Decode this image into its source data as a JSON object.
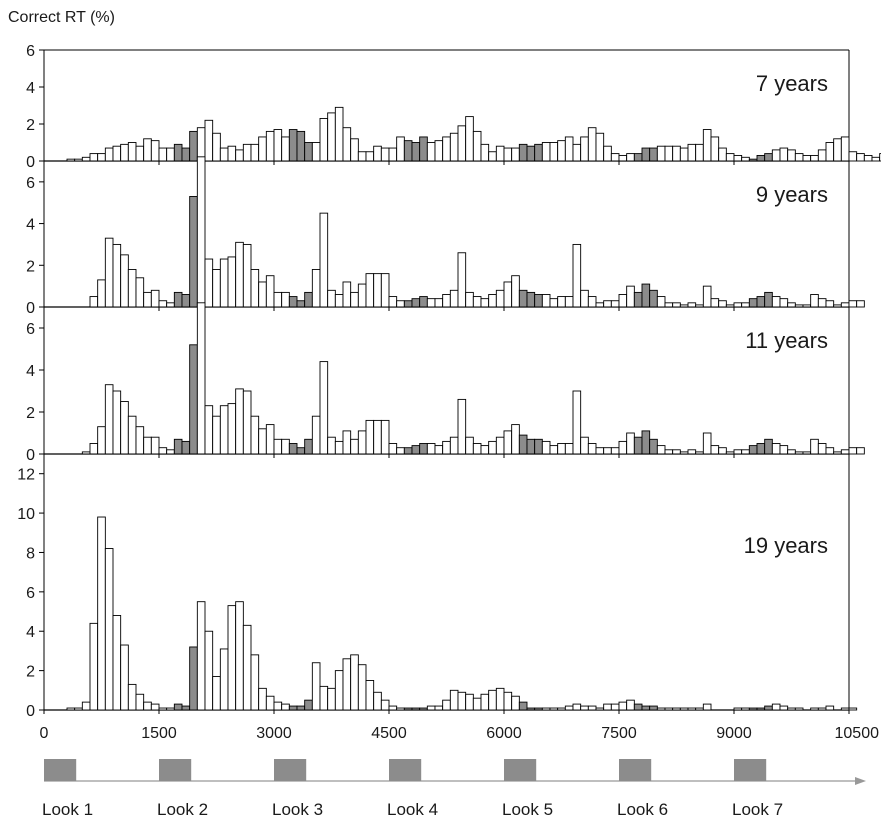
{
  "chart_data": {
    "type": "bar",
    "ylabel": "Correct RT (%)",
    "x_ticks": [
      0,
      1500,
      3000,
      4500,
      6000,
      7500,
      9000,
      10500
    ],
    "xlim": [
      0,
      10500
    ],
    "bin_width_ms": 100,
    "bin_start_ms": 300,
    "highlight_windows_ms": [
      [
        1700,
        2000
      ],
      [
        3200,
        3500
      ],
      [
        4700,
        5000
      ],
      [
        6200,
        6500
      ],
      [
        7700,
        8000
      ],
      [
        9200,
        9500
      ]
    ],
    "panels": [
      {
        "label": "7 years",
        "ylim": [
          0,
          6
        ],
        "y_ticks": [
          0,
          2,
          4,
          6
        ],
        "values": [
          0.1,
          0.1,
          0.2,
          0.4,
          0.4,
          0.7,
          0.8,
          0.9,
          1.0,
          0.8,
          1.2,
          1.1,
          0.7,
          0.7,
          0.9,
          0.7,
          1.6,
          1.8,
          2.2,
          1.5,
          0.7,
          0.8,
          0.6,
          0.9,
          0.9,
          1.3,
          1.6,
          1.7,
          1.3,
          1.7,
          1.6,
          1.0,
          1.0,
          2.3,
          2.6,
          2.9,
          1.8,
          1.2,
          0.5,
          0.5,
          0.8,
          0.7,
          0.7,
          1.3,
          1.1,
          1.0,
          1.3,
          1.0,
          1.1,
          1.3,
          1.5,
          1.9,
          2.4,
          1.6,
          0.9,
          0.5,
          0.8,
          0.7,
          0.7,
          0.9,
          0.8,
          0.9,
          1.0,
          1.0,
          1.1,
          1.3,
          0.9,
          1.3,
          1.8,
          1.5,
          0.8,
          0.4,
          0.3,
          0.4,
          0.4,
          0.7,
          0.7,
          0.8,
          0.8,
          0.8,
          0.7,
          0.9,
          0.9,
          1.7,
          1.3,
          0.7,
          0.4,
          0.3,
          0.2,
          0.1,
          0.3,
          0.4,
          0.6,
          0.7,
          0.6,
          0.4,
          0.3,
          0.3,
          0.6,
          1.0,
          1.2,
          1.3,
          0.5,
          0.4,
          0.3,
          0.2,
          0.4
        ]
      },
      {
        "label": "9 years",
        "ylim": [
          0,
          7
        ],
        "y_ticks": [
          0,
          2,
          4,
          6
        ],
        "values": [
          0,
          0,
          0,
          0.5,
          1.3,
          3.3,
          3.0,
          2.5,
          1.8,
          1.4,
          0.7,
          0.8,
          0.3,
          0.2,
          0.7,
          0.6,
          5.3,
          7.2,
          2.3,
          1.8,
          2.3,
          2.4,
          3.1,
          3.0,
          1.8,
          1.2,
          1.5,
          0.7,
          0.7,
          0.5,
          0.3,
          0.7,
          1.8,
          4.5,
          0.8,
          0.6,
          1.2,
          0.7,
          1.1,
          1.6,
          1.6,
          1.6,
          0.5,
          0.3,
          0.3,
          0.4,
          0.5,
          0.4,
          0.4,
          0.6,
          0.8,
          2.6,
          0.7,
          0.5,
          0.4,
          0.6,
          0.8,
          1.2,
          1.5,
          0.8,
          0.7,
          0.6,
          0.6,
          0.4,
          0.5,
          0.5,
          3.0,
          0.8,
          0.5,
          0.2,
          0.3,
          0.3,
          0.6,
          1.0,
          0.7,
          1.1,
          0.8,
          0.5,
          0.2,
          0.2,
          0.1,
          0.2,
          0.1,
          1.0,
          0.4,
          0.3,
          0.1,
          0.2,
          0.2,
          0.4,
          0.5,
          0.7,
          0.5,
          0.4,
          0.2,
          0.1,
          0.1,
          0.6,
          0.4,
          0.3,
          0.1,
          0.2,
          0.3,
          0.3
        ]
      },
      {
        "label": "11 years",
        "ylim": [
          0,
          7
        ],
        "y_ticks": [
          0,
          2,
          4,
          6
        ],
        "values": [
          0,
          0,
          0.1,
          0.5,
          1.3,
          3.3,
          3.0,
          2.5,
          1.8,
          1.3,
          0.8,
          0.8,
          0.3,
          0.2,
          0.7,
          0.6,
          5.2,
          7.2,
          2.3,
          1.8,
          2.3,
          2.4,
          3.1,
          3.0,
          1.8,
          1.2,
          1.4,
          0.7,
          0.7,
          0.5,
          0.3,
          0.7,
          1.8,
          4.4,
          0.8,
          0.6,
          1.1,
          0.7,
          1.1,
          1.6,
          1.6,
          1.6,
          0.5,
          0.3,
          0.3,
          0.4,
          0.5,
          0.5,
          0.4,
          0.6,
          0.8,
          2.6,
          0.8,
          0.5,
          0.4,
          0.6,
          0.8,
          1.1,
          1.4,
          0.9,
          0.7,
          0.7,
          0.6,
          0.4,
          0.5,
          0.5,
          3.0,
          0.8,
          0.5,
          0.3,
          0.3,
          0.3,
          0.6,
          1.0,
          0.8,
          1.1,
          0.7,
          0.4,
          0.2,
          0.2,
          0.1,
          0.2,
          0.1,
          1.0,
          0.4,
          0.3,
          0.1,
          0.2,
          0.2,
          0.4,
          0.5,
          0.7,
          0.5,
          0.4,
          0.2,
          0.1,
          0.1,
          0.7,
          0.5,
          0.3,
          0.1,
          0.2,
          0.3,
          0.3
        ]
      },
      {
        "label": "19 years",
        "ylim": [
          0,
          13
        ],
        "y_ticks": [
          0,
          2,
          4,
          6,
          8,
          10,
          12
        ],
        "values": [
          0.1,
          0.1,
          0.4,
          4.4,
          9.8,
          8.2,
          4.8,
          3.3,
          1.3,
          0.8,
          0.4,
          0.3,
          0.1,
          0.1,
          0.3,
          0.2,
          3.2,
          5.5,
          4.0,
          1.7,
          3.1,
          5.3,
          5.5,
          4.3,
          2.8,
          1.1,
          0.7,
          0.4,
          0.3,
          0.2,
          0.2,
          0.5,
          2.4,
          1.2,
          1.1,
          2.0,
          2.6,
          2.8,
          2.3,
          1.5,
          0.9,
          0.5,
          0.2,
          0.1,
          0.1,
          0.1,
          0.1,
          0.2,
          0.2,
          0.5,
          1.0,
          0.9,
          0.8,
          0.6,
          0.8,
          1.0,
          1.1,
          0.9,
          0.7,
          0.4,
          0.1,
          0.1,
          0.1,
          0.1,
          0.1,
          0.2,
          0.3,
          0.2,
          0.2,
          0.1,
          0.3,
          0.3,
          0.4,
          0.5,
          0.3,
          0.2,
          0.2,
          0.1,
          0.1,
          0.1,
          0.1,
          0.1,
          0.1,
          0.3,
          0,
          0,
          0,
          0.1,
          0.1,
          0.1,
          0.1,
          0.2,
          0.3,
          0.2,
          0.1,
          0.1,
          0,
          0.1,
          0.1,
          0.2,
          0,
          0.1,
          0.1,
          0
        ]
      }
    ],
    "timeline": {
      "looks": [
        "Look 1",
        "Look 2",
        "Look 3",
        "Look 4",
        "Look 5",
        "Look 6",
        "Look 7"
      ],
      "look_windows_ms": [
        [
          0,
          420
        ],
        [
          1500,
          1920
        ],
        [
          3000,
          3420
        ],
        [
          4500,
          4920
        ],
        [
          6000,
          6420
        ],
        [
          7500,
          7920
        ],
        [
          9000,
          9420
        ]
      ]
    },
    "colors": {
      "white_bar": "#ffffff",
      "gray_bar": "#8c8c8c",
      "bar_stroke": "#000000"
    }
  }
}
